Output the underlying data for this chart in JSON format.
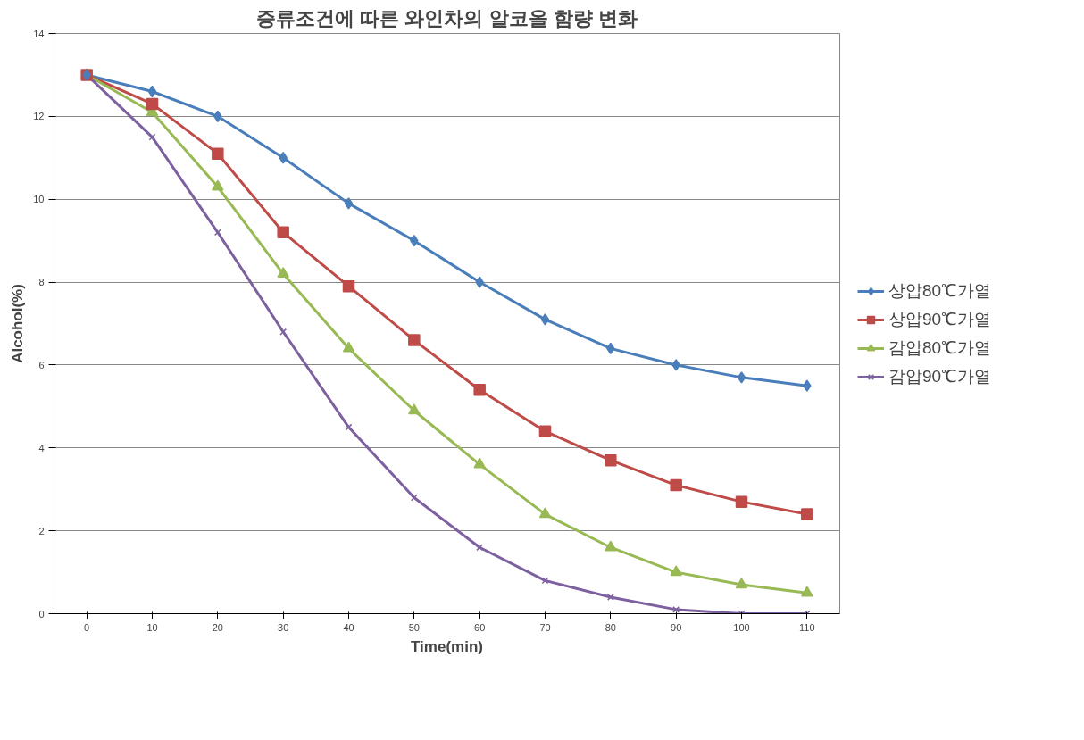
{
  "chart_data": {
    "type": "line",
    "title": "증류조건에 따른 와인차의 알코올 함량 변화",
    "xlabel": "Time(min)",
    "ylabel": "Alcohol(%)",
    "categories": [
      "0",
      "10",
      "20",
      "30",
      "40",
      "50",
      "60",
      "70",
      "80",
      "90",
      "100",
      "110"
    ],
    "series": [
      {
        "name": "상압80℃가열",
        "color": "#4a7ebb",
        "marker": "diamond",
        "values": [
          13,
          12.6,
          12.0,
          11.0,
          9.9,
          9.0,
          8.0,
          7.1,
          6.4,
          6.0,
          5.7,
          5.5
        ]
      },
      {
        "name": "상압90℃가열",
        "color": "#be4b48",
        "marker": "square",
        "values": [
          13,
          12.3,
          11.1,
          9.2,
          7.9,
          6.6,
          5.4,
          4.4,
          3.7,
          3.1,
          2.7,
          2.4
        ]
      },
      {
        "name": "감압80℃가열",
        "color": "#98b954",
        "marker": "triangle",
        "values": [
          13,
          12.1,
          10.3,
          8.2,
          6.4,
          4.9,
          3.6,
          2.4,
          1.6,
          1.0,
          0.7,
          0.5
        ]
      },
      {
        "name": "감압90℃가열",
        "color": "#7d60a0",
        "marker": "cross",
        "values": [
          13,
          11.5,
          9.2,
          6.8,
          4.5,
          2.8,
          1.6,
          0.8,
          0.4,
          0.1,
          0,
          0
        ]
      }
    ],
    "ylim": [
      0,
      14
    ],
    "yticks": [
      0,
      2,
      4,
      6,
      8,
      10,
      12,
      14
    ],
    "grid": "y",
    "legend": "right",
    "line_style": "solid"
  }
}
